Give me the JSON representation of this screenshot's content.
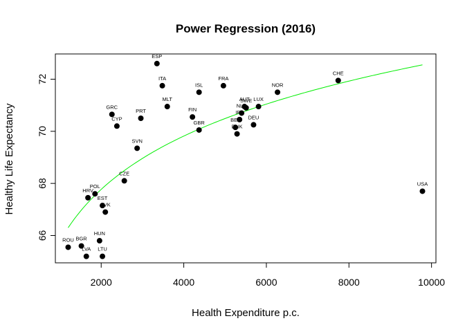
{
  "chart_data": {
    "type": "scatter",
    "title": "Power Regression (2016)",
    "xlabel": "Health Expenditure p.c.",
    "ylabel": "Healthy Life Expectancy",
    "xlim": [
      1000,
      10000
    ],
    "ylim": [
      65,
      73
    ],
    "x_ticks": [
      2000,
      4000,
      6000,
      8000,
      10000
    ],
    "y_ticks": [
      66,
      68,
      70,
      72
    ],
    "grid": false,
    "legend": "none",
    "points": [
      {
        "label": "ESP",
        "x": 3350,
        "y": 72.6
      },
      {
        "label": "ITA",
        "x": 3480,
        "y": 71.75
      },
      {
        "label": "ISL",
        "x": 4370,
        "y": 71.5
      },
      {
        "label": "FRA",
        "x": 4960,
        "y": 71.75
      },
      {
        "label": "NOR",
        "x": 6270,
        "y": 71.5
      },
      {
        "label": "CHE",
        "x": 7740,
        "y": 71.95
      },
      {
        "label": "MLT",
        "x": 3600,
        "y": 70.95
      },
      {
        "label": "GRC",
        "x": 2260,
        "y": 70.65
      },
      {
        "label": "CYP",
        "x": 2380,
        "y": 70.2
      },
      {
        "label": "PRT",
        "x": 2960,
        "y": 70.5
      },
      {
        "label": "FIN",
        "x": 4210,
        "y": 70.55
      },
      {
        "label": "GBR",
        "x": 4370,
        "y": 70.05
      },
      {
        "label": "AUT",
        "x": 5470,
        "y": 70.95
      },
      {
        "label": "SWE",
        "x": 5510,
        "y": 70.9
      },
      {
        "label": "LUX",
        "x": 5810,
        "y": 70.95
      },
      {
        "label": "NLD",
        "x": 5400,
        "y": 70.7
      },
      {
        "label": "IRL",
        "x": 5350,
        "y": 70.45
      },
      {
        "label": "BEL",
        "x": 5250,
        "y": 70.15
      },
      {
        "label": "DNK",
        "x": 5290,
        "y": 69.9
      },
      {
        "label": "DEU",
        "x": 5690,
        "y": 70.25
      },
      {
        "label": "SVN",
        "x": 2870,
        "y": 69.35
      },
      {
        "label": "CZE",
        "x": 2560,
        "y": 68.1
      },
      {
        "label": "POL",
        "x": 1850,
        "y": 67.6
      },
      {
        "label": "HRV",
        "x": 1680,
        "y": 67.45
      },
      {
        "label": "EST",
        "x": 2030,
        "y": 67.15
      },
      {
        "label": "SVK",
        "x": 2100,
        "y": 66.9
      },
      {
        "label": "HUN",
        "x": 1960,
        "y": 65.8
      },
      {
        "label": "ROU",
        "x": 1200,
        "y": 65.55
      },
      {
        "label": "BGR",
        "x": 1520,
        "y": 65.6
      },
      {
        "label": "LVA",
        "x": 1640,
        "y": 65.2
      },
      {
        "label": "LTU",
        "x": 2030,
        "y": 65.2
      },
      {
        "label": "USA",
        "x": 9780,
        "y": 67.7
      }
    ],
    "fit": {
      "model": "power",
      "x_range": [
        1200,
        9780
      ],
      "anchor": {
        "x": 1200,
        "y": 66.3
      },
      "end": {
        "x": 9780,
        "y": 72.55
      }
    },
    "colors": {
      "points": "#000000",
      "fit_line": "#00ee00",
      "frame": "#000000"
    }
  }
}
